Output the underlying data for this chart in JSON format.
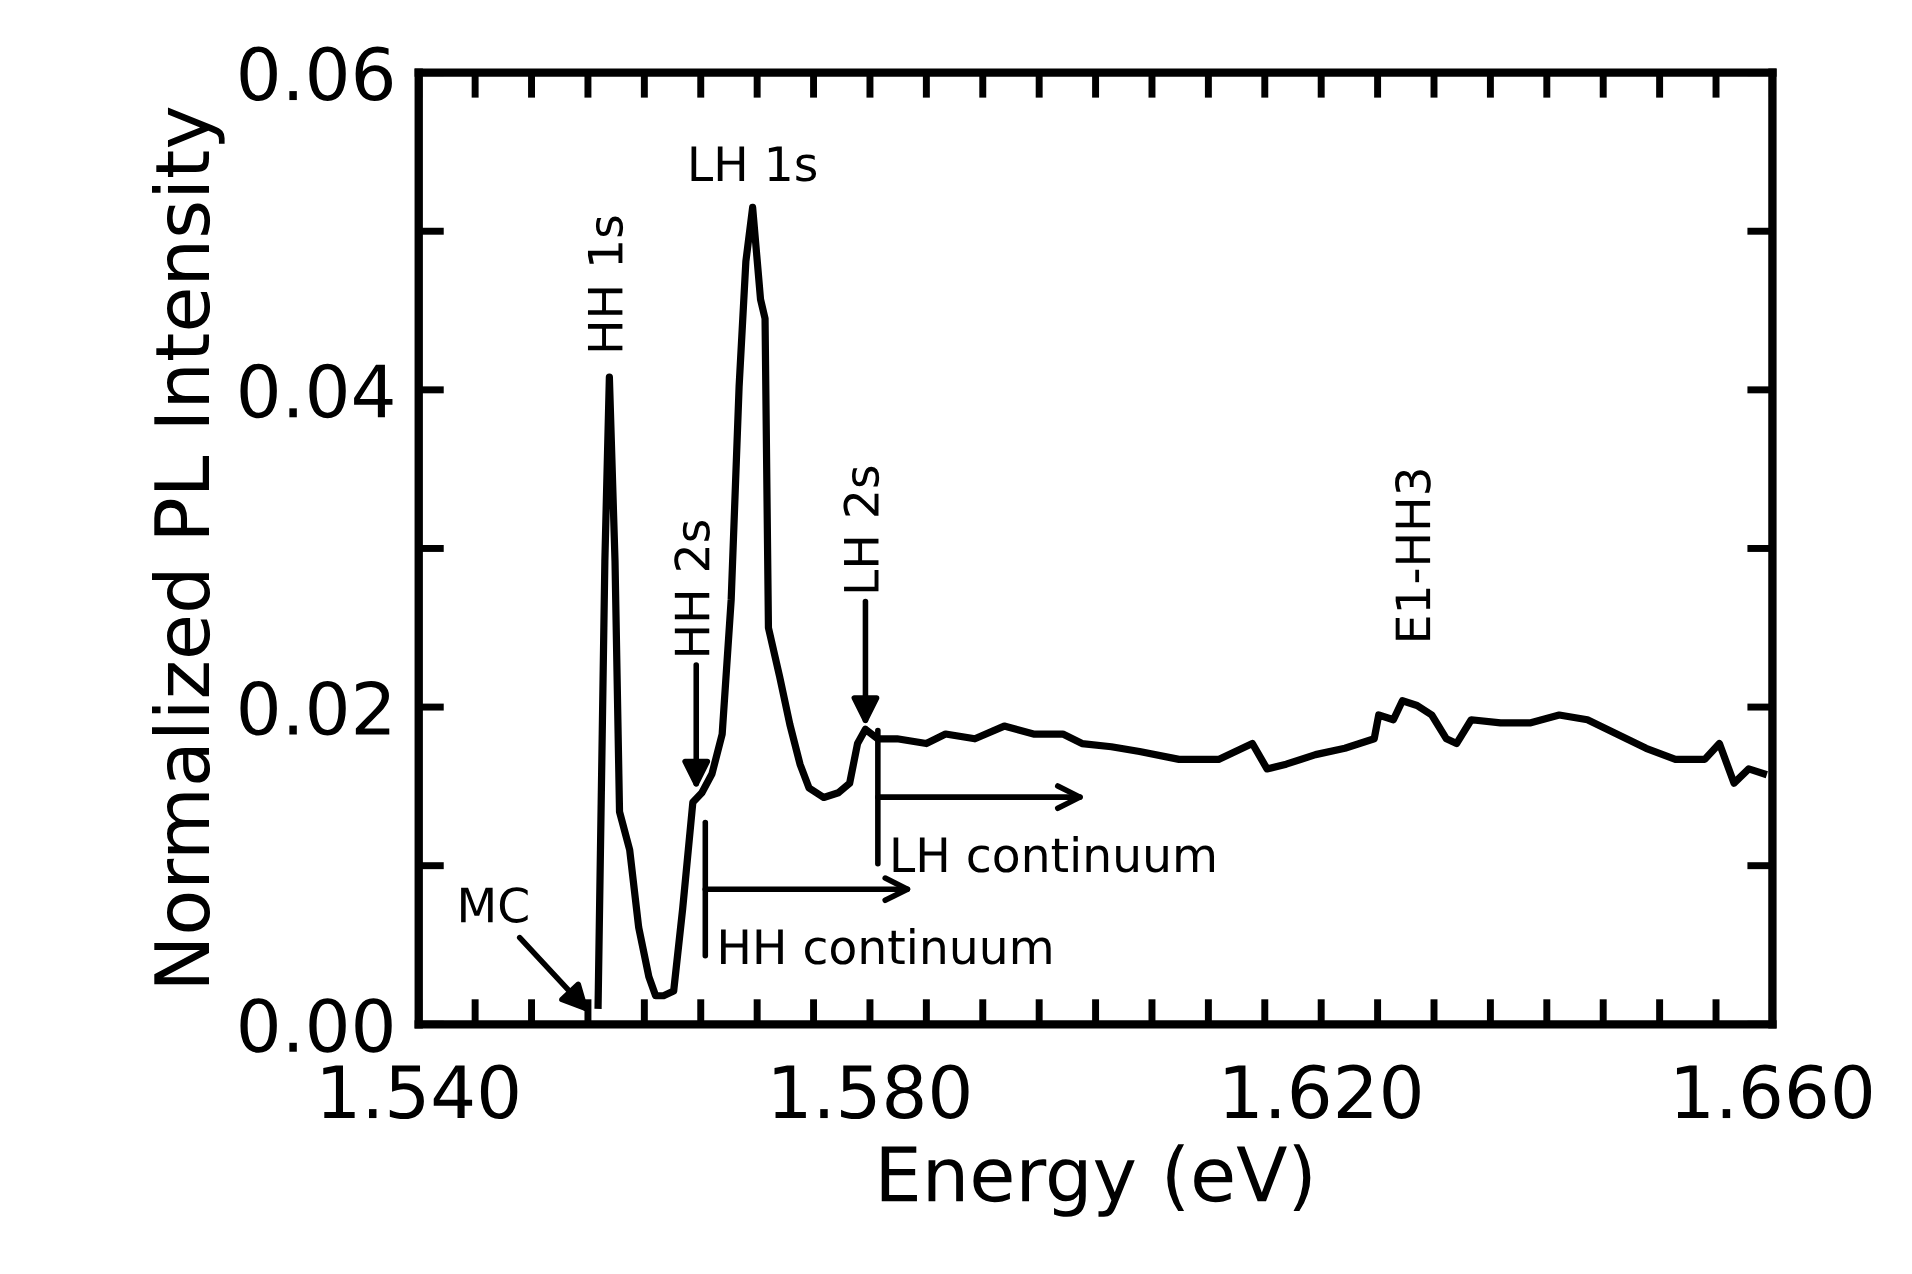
{
  "chart_data": {
    "type": "line",
    "xlabel": "Energy (eV)",
    "ylabel": "Normalized PL Intensity",
    "xlim": [
      1.54,
      1.66
    ],
    "ylim": [
      0,
      0.06
    ],
    "xticks": [
      {
        "value": 1.54,
        "label": "1.540"
      },
      {
        "value": 1.545,
        "label": null
      },
      {
        "value": 1.55,
        "label": null
      },
      {
        "value": 1.555,
        "label": null
      },
      {
        "value": 1.56,
        "label": null
      },
      {
        "value": 1.565,
        "label": null
      },
      {
        "value": 1.57,
        "label": null
      },
      {
        "value": 1.575,
        "label": null
      },
      {
        "value": 1.58,
        "label": "1.580"
      },
      {
        "value": 1.585,
        "label": null
      },
      {
        "value": 1.59,
        "label": null
      },
      {
        "value": 1.595,
        "label": null
      },
      {
        "value": 1.6,
        "label": null
      },
      {
        "value": 1.605,
        "label": null
      },
      {
        "value": 1.61,
        "label": null
      },
      {
        "value": 1.615,
        "label": null
      },
      {
        "value": 1.62,
        "label": "1.620"
      },
      {
        "value": 1.625,
        "label": null
      },
      {
        "value": 1.63,
        "label": null
      },
      {
        "value": 1.635,
        "label": null
      },
      {
        "value": 1.64,
        "label": null
      },
      {
        "value": 1.645,
        "label": null
      },
      {
        "value": 1.65,
        "label": null
      },
      {
        "value": 1.655,
        "label": null
      },
      {
        "value": 1.66,
        "label": "1.660"
      }
    ],
    "yticks": [
      {
        "value": 0,
        "label": "0.00"
      },
      {
        "value": 0.01,
        "label": null
      },
      {
        "value": 0.02,
        "label": "0.02"
      },
      {
        "value": 0.03,
        "label": null
      },
      {
        "value": 0.04,
        "label": "0.04"
      },
      {
        "value": 0.05,
        "label": null
      },
      {
        "value": 0.06,
        "label": "0.06"
      }
    ],
    "grid": false,
    "legend": false,
    "marker": "none",
    "line_style": "solid",
    "series": [
      {
        "color": "#000000",
        "x": [
          1.5559,
          1.5565,
          1.5569,
          1.5574,
          1.5578,
          1.5587,
          1.5595,
          1.5604,
          1.561,
          1.5617,
          1.5626,
          1.5634,
          1.5643,
          1.5651,
          1.566,
          1.5669,
          1.5677,
          1.5684,
          1.569,
          1.5696,
          1.5703,
          1.5707,
          1.571,
          1.572,
          1.5729,
          1.5738,
          1.5746,
          1.5759,
          1.5772,
          1.5782,
          1.5789,
          1.5796,
          1.5807,
          1.5824,
          1.585,
          1.5867,
          1.5893,
          1.5919,
          1.5945,
          1.5971,
          1.5988,
          1.6014,
          1.6039,
          1.6074,
          1.6109,
          1.6139,
          1.6152,
          1.6169,
          1.6195,
          1.6221,
          1.6247,
          1.6251,
          1.6264,
          1.6272,
          1.6285,
          1.6298,
          1.6311,
          1.632,
          1.6333,
          1.6359,
          1.6385,
          1.6411,
          1.6436,
          1.6462,
          1.6488,
          1.6514,
          1.654,
          1.6553,
          1.6566,
          1.6579,
          1.6592
        ],
        "values": [
          0.0012,
          0.0292,
          0.0408,
          0.0292,
          0.0134,
          0.011,
          0.0061,
          0.003,
          0.0018,
          0.0018,
          0.0021,
          0.0073,
          0.014,
          0.0146,
          0.0158,
          0.0183,
          0.0268,
          0.0402,
          0.0481,
          0.0515,
          0.0457,
          0.0445,
          0.025,
          0.0219,
          0.0189,
          0.0164,
          0.0149,
          0.0143,
          0.0146,
          0.0152,
          0.0177,
          0.0186,
          0.018,
          0.018,
          0.0177,
          0.0183,
          0.018,
          0.0188,
          0.0183,
          0.0183,
          0.0177,
          0.0175,
          0.0172,
          0.0167,
          0.0167,
          0.0177,
          0.0161,
          0.0164,
          0.017,
          0.0174,
          0.018,
          0.0195,
          0.0192,
          0.0204,
          0.0201,
          0.0195,
          0.018,
          0.0177,
          0.0192,
          0.019,
          0.019,
          0.0195,
          0.0192,
          0.0183,
          0.0174,
          0.0167,
          0.0167,
          0.0177,
          0.0152,
          0.0161,
          0.0158
        ]
      }
    ],
    "annotations": [
      {
        "text": "HH 1s",
        "x": 1.5569,
        "y": 0.0408
      },
      {
        "text": "LH 1s",
        "x": 1.5696,
        "y": 0.0515
      },
      {
        "text": "HH 2s",
        "x": 1.5646,
        "y": 0.0146
      },
      {
        "text": "LH 2s",
        "x": 1.5796,
        "y": 0.0186
      },
      {
        "text": "E1-HH3",
        "x": 1.6285,
        "y": 0.0201
      },
      "MC",
      "HH continuum",
      {
        "text": "LH continuum",
        "x": 1.5807,
        "y": 0.018
      }
    ]
  }
}
